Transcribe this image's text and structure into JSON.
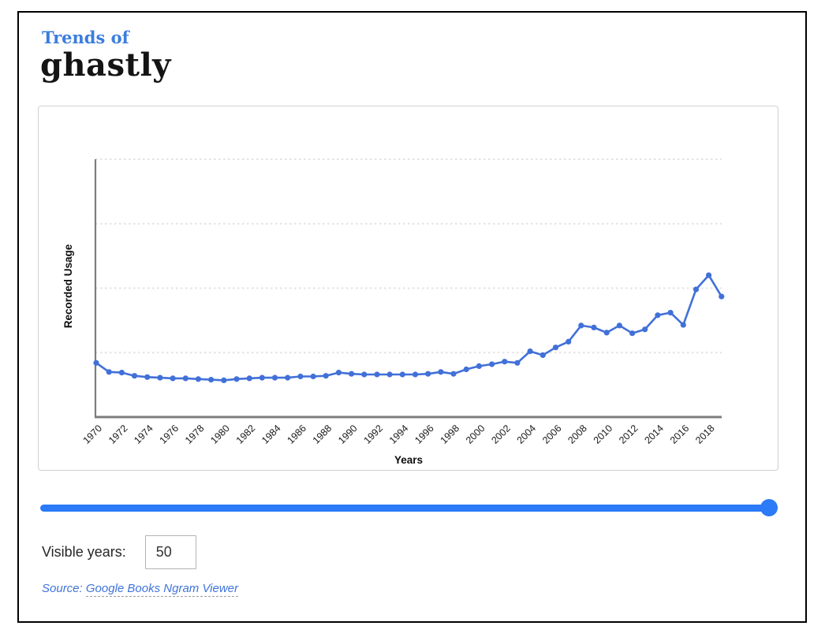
{
  "header": {
    "trends_label": "Trends of",
    "word": "ghastly"
  },
  "chart_data": {
    "type": "line",
    "title": "",
    "xlabel": "Years",
    "ylabel": "Recorded Usage",
    "x": [
      1970,
      1971,
      1972,
      1973,
      1974,
      1975,
      1976,
      1977,
      1978,
      1979,
      1980,
      1981,
      1982,
      1983,
      1984,
      1985,
      1986,
      1987,
      1988,
      1989,
      1990,
      1991,
      1992,
      1993,
      1994,
      1995,
      1996,
      1997,
      1998,
      1999,
      2000,
      2001,
      2002,
      2003,
      2004,
      2005,
      2006,
      2007,
      2008,
      2009,
      2010,
      2011,
      2012,
      2013,
      2014,
      2015,
      2016,
      2017,
      2018,
      2019
    ],
    "values": [
      0.84,
      0.7,
      0.69,
      0.64,
      0.62,
      0.61,
      0.6,
      0.6,
      0.59,
      0.58,
      0.57,
      0.59,
      0.6,
      0.61,
      0.61,
      0.61,
      0.63,
      0.63,
      0.64,
      0.69,
      0.67,
      0.66,
      0.66,
      0.66,
      0.66,
      0.66,
      0.67,
      0.7,
      0.67,
      0.74,
      0.79,
      0.82,
      0.86,
      0.84,
      1.02,
      0.96,
      1.08,
      1.17,
      1.42,
      1.39,
      1.31,
      1.42,
      1.3,
      1.36,
      1.58,
      1.62,
      1.43,
      1.98,
      2.2,
      1.87
    ],
    "x_tick_labels": [
      "1970",
      "1972",
      "1974",
      "1976",
      "1978",
      "1980",
      "1982",
      "1984",
      "1986",
      "1988",
      "1990",
      "1992",
      "1994",
      "1996",
      "1998",
      "2000",
      "2002",
      "2004",
      "2006",
      "2008",
      "2010",
      "2012",
      "2014",
      "2016",
      "2018"
    ],
    "ylim": [
      0,
      4
    ],
    "gridlines": [
      1,
      2,
      3,
      4
    ],
    "grid": "dashed horizontal, no y tick labels",
    "legend": "none",
    "line_color": "#4170d8"
  },
  "controls": {
    "visible_years_label": "Visible years:",
    "visible_years_value": "50",
    "slider_position_percent": 100
  },
  "source": {
    "prefix": "Source:",
    "link_text": "Google Books Ngram Viewer"
  },
  "colors": {
    "title_accent": "#3b7ddd",
    "line": "#4170d8",
    "slider": "#2b7af7"
  }
}
